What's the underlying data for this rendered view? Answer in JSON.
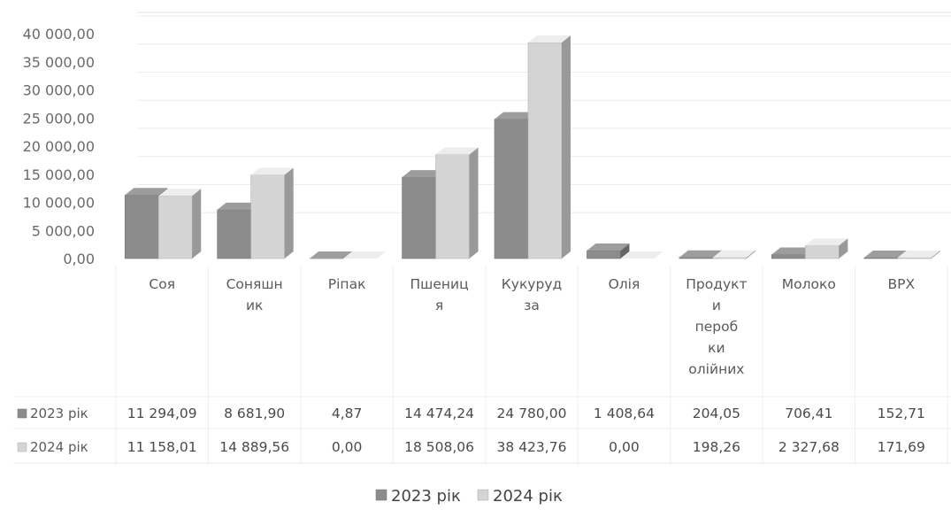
{
  "chart_data": {
    "type": "bar",
    "title": "",
    "xlabel": "",
    "ylabel": "",
    "ylim": [
      0,
      40000
    ],
    "yticks": [
      "40 000,00",
      "35 000,00",
      "30 000,00",
      "25 000,00",
      "20 000,00",
      "15 000,00",
      "10 000,00",
      "5 000,00",
      "0,00"
    ],
    "categories": [
      [
        "Соя"
      ],
      [
        "Соняшн",
        "ик"
      ],
      [
        "Ріпак"
      ],
      [
        "Пшениц",
        "я"
      ],
      [
        "Кукуруд",
        "за"
      ],
      [
        "Олія"
      ],
      [
        "Продукт",
        "и",
        "пероб",
        "ки",
        "олійних"
      ],
      [
        "Молоко"
      ],
      [
        "ВРХ"
      ]
    ],
    "series": [
      {
        "name": "2023 рік",
        "color": "#8c8c8c",
        "values": [
          11294.09,
          8681.9,
          4.87,
          14474.24,
          24780.0,
          1408.64,
          204.05,
          706.41,
          152.71
        ],
        "labels": [
          "11 294,09",
          "8 681,90",
          "4,87",
          "14 474,24",
          "24 780,00",
          "1 408,64",
          "204,05",
          "706,41",
          "152,71"
        ]
      },
      {
        "name": "2024 рік",
        "color": "#d4d4d4",
        "values": [
          11158.01,
          14889.56,
          0.0,
          18508.06,
          38423.76,
          0.0,
          198.26,
          2327.68,
          171.69
        ],
        "labels": [
          "11 158,01",
          "14 889,56",
          "0,00",
          "18 508,06",
          "38 423,76",
          "0,00",
          "198,26",
          "2 327,68",
          "171,69"
        ]
      }
    ],
    "grid": true,
    "legend": "bottom-center",
    "data_table": true
  }
}
